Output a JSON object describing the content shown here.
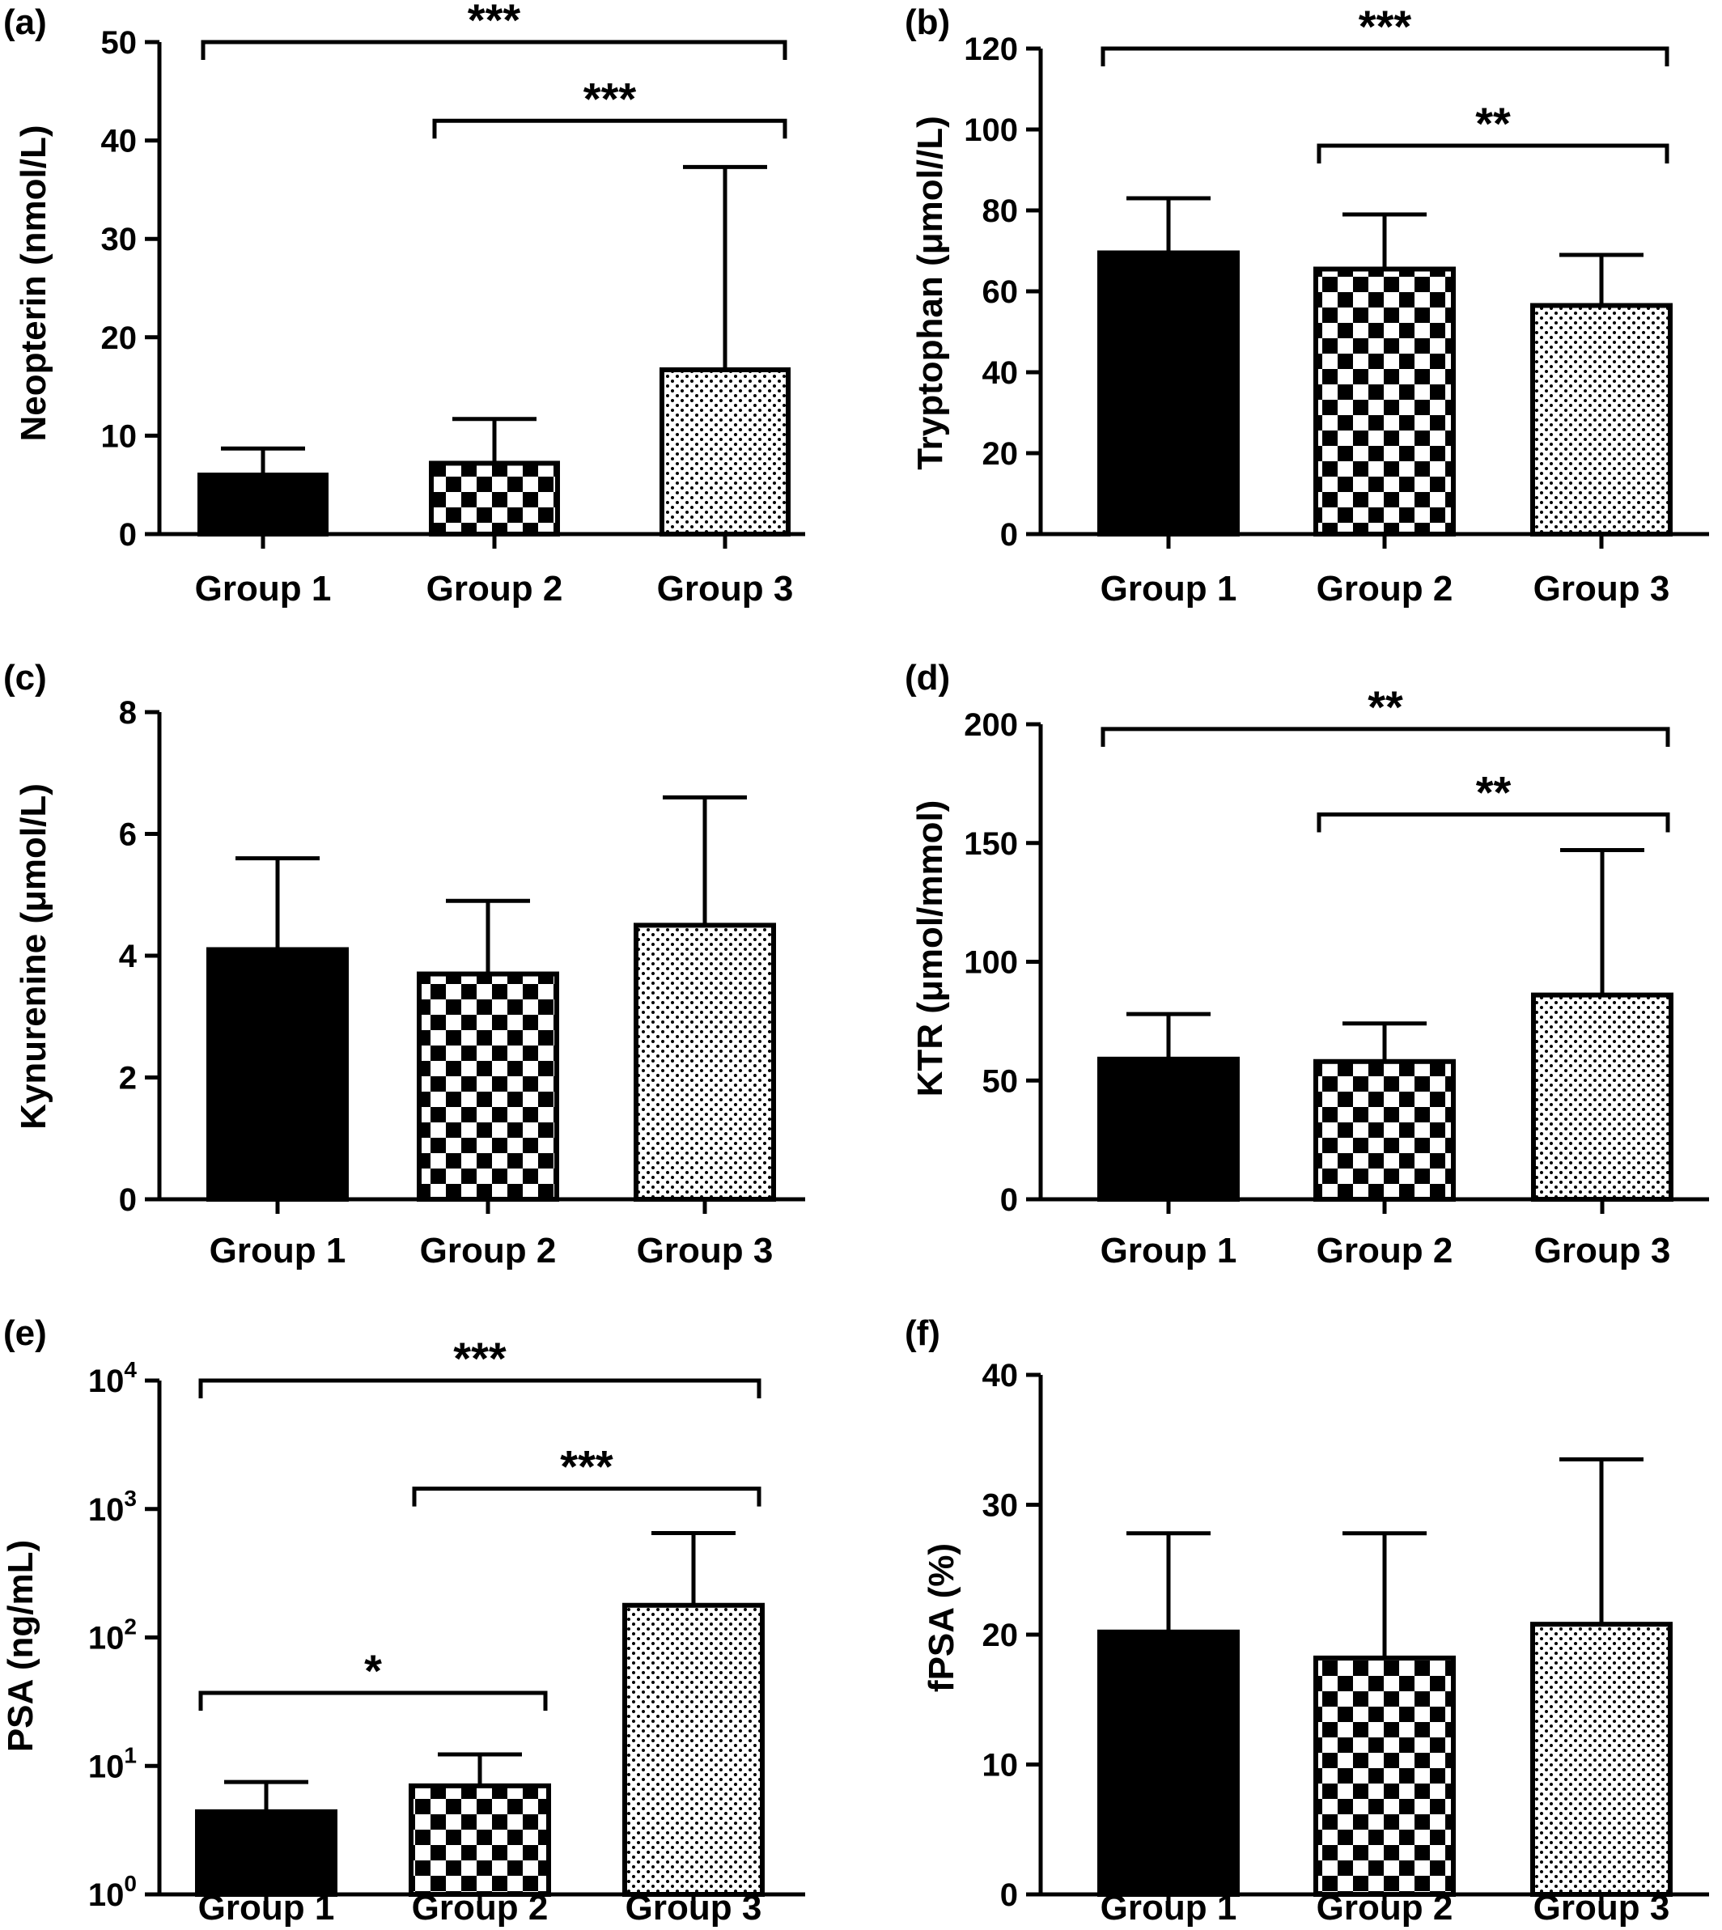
{
  "figure": {
    "panels": [
      {
        "id": "a",
        "label": "(a)",
        "ylabel": "Neopterin (nmol/L)"
      },
      {
        "id": "b",
        "label": "(b)",
        "ylabel": "Tryptophan (μmol//L)"
      },
      {
        "id": "c",
        "label": "(c)",
        "ylabel": "Kynurenine (μmol/L)"
      },
      {
        "id": "d",
        "label": "(d)",
        "ylabel": "KTR  (μmol/mmol)"
      },
      {
        "id": "e",
        "label": "(e)",
        "ylabel": "PSA (ng/mL)"
      },
      {
        "id": "f",
        "label": "(f)",
        "ylabel": "fPSA (%)"
      }
    ]
  },
  "chart_data": [
    {
      "panel": "(a)",
      "type": "bar",
      "categories": [
        "Group 1",
        "Group 2",
        "Group 3"
      ],
      "values": [
        6.0,
        7.2,
        16.7
      ],
      "error_upper": [
        8.7,
        11.7,
        37.3
      ],
      "ylabel": "Neopterin (nmol/L)",
      "ylim": [
        0,
        50
      ],
      "yticks": [
        0,
        10,
        20,
        30,
        40,
        50
      ],
      "scale": "linear",
      "patterns": [
        "solid",
        "checker",
        "dots"
      ],
      "significance": [
        {
          "from": 0,
          "to": 2,
          "label": "***",
          "y": 50
        },
        {
          "from": 1,
          "to": 2,
          "label": "***",
          "y": 42
        }
      ]
    },
    {
      "panel": "(b)",
      "type": "bar",
      "categories": [
        "Group 1",
        "Group 2",
        "Group 3"
      ],
      "values": [
        69.5,
        65.5,
        56.5
      ],
      "error_upper": [
        83,
        79,
        69
      ],
      "ylabel": "Tryptophan (μmol//L)",
      "ylim": [
        0,
        120
      ],
      "yticks": [
        0,
        20,
        40,
        60,
        80,
        100,
        120
      ],
      "scale": "linear",
      "patterns": [
        "solid",
        "checker",
        "dots"
      ],
      "significance": [
        {
          "from": 0,
          "to": 2,
          "label": "***",
          "y": 120
        },
        {
          "from": 1,
          "to": 2,
          "label": "**",
          "y": 96
        }
      ]
    },
    {
      "panel": "(c)",
      "type": "bar",
      "categories": [
        "Group 1",
        "Group 2",
        "Group 3"
      ],
      "values": [
        4.1,
        3.7,
        4.5
      ],
      "error_upper": [
        5.6,
        4.9,
        6.6
      ],
      "ylabel": "Kynurenine (μmol/L)",
      "ylim": [
        0,
        8
      ],
      "yticks": [
        0,
        2,
        4,
        6,
        8
      ],
      "scale": "linear",
      "patterns": [
        "solid",
        "checker",
        "dots"
      ],
      "significance": []
    },
    {
      "panel": "(d)",
      "type": "bar",
      "categories": [
        "Group 1",
        "Group 2",
        "Group 3"
      ],
      "values": [
        59,
        58,
        86
      ],
      "error_upper": [
        78,
        74,
        147
      ],
      "ylabel": "KTR  (μmol/mmol)",
      "ylim": [
        0,
        200
      ],
      "yticks": [
        0,
        50,
        100,
        150,
        200
      ],
      "scale": "linear",
      "patterns": [
        "solid",
        "checker",
        "dots"
      ],
      "significance": [
        {
          "from": 0,
          "to": 2,
          "label": "**",
          "y": 198
        },
        {
          "from": 1,
          "to": 2,
          "label": "**",
          "y": 162
        }
      ]
    },
    {
      "panel": "(e)",
      "type": "bar",
      "categories": [
        "Group 1",
        "Group 2",
        "Group 3"
      ],
      "values": [
        4.4,
        7.0,
        178
      ],
      "error_upper": [
        7.5,
        12.3,
        650
      ],
      "ylabel": "PSA (ng/mL)",
      "ylim": [
        1,
        10000
      ],
      "yticks": [
        1,
        10,
        100,
        1000,
        10000
      ],
      "yticklabels": [
        [
          "10",
          "0"
        ],
        [
          "10",
          "1"
        ],
        [
          "10",
          "2"
        ],
        [
          "10",
          "3"
        ],
        [
          "10",
          "4"
        ]
      ],
      "scale": "log",
      "patterns": [
        "solid",
        "checker",
        "dots"
      ],
      "significance": [
        {
          "from": 0,
          "to": 2,
          "label": "***",
          "y": 10000
        },
        {
          "from": 1,
          "to": 2,
          "label": "***",
          "y": 1440
        },
        {
          "from": 0,
          "to": 1,
          "label": "*",
          "y": 37
        }
      ]
    },
    {
      "panel": "(f)",
      "type": "bar",
      "categories": [
        "Group 1",
        "Group 2",
        "Group 3"
      ],
      "values": [
        20.2,
        18.2,
        20.8
      ],
      "error_upper": [
        27.8,
        27.8,
        33.5
      ],
      "ylabel": "fPSA (%)",
      "ylim": [
        0,
        40
      ],
      "yticks": [
        0,
        10,
        20,
        30,
        40
      ],
      "scale": "linear",
      "patterns": [
        "solid",
        "checker",
        "dots"
      ],
      "significance": []
    }
  ]
}
